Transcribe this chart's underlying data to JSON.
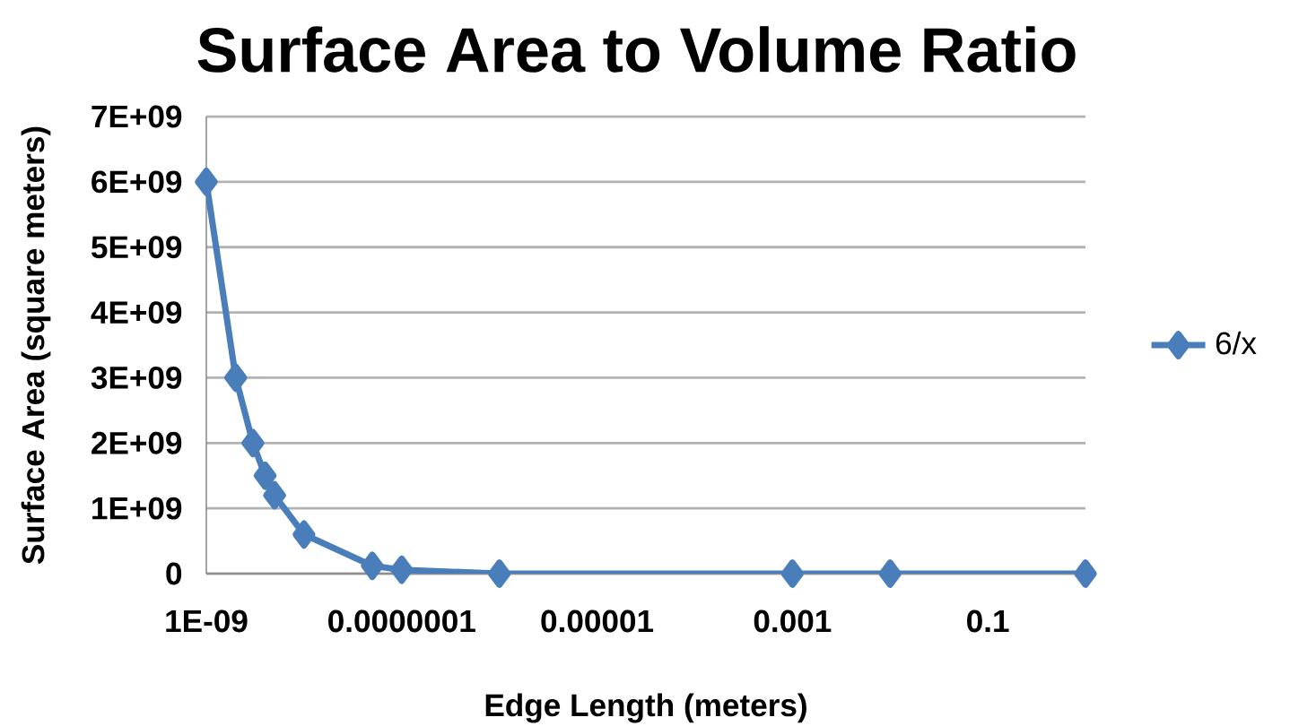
{
  "chart_data": {
    "type": "line",
    "title": "Surface Area to Volume Ratio",
    "xlabel": "Edge Length (meters)",
    "ylabel": "Surface Area (square meters)",
    "x": [
      1e-09,
      2e-09,
      3e-09,
      4e-09,
      5e-09,
      1e-08,
      5e-08,
      1e-07,
      1e-06,
      0.001,
      0.01,
      1
    ],
    "series": [
      {
        "name": "6/x",
        "color": "#4a7ebb",
        "values": [
          6000000000,
          3000000000,
          2000000000,
          1500000000,
          1200000000,
          600000000,
          120000000,
          60000000,
          0,
          0,
          0,
          0
        ]
      }
    ],
    "log": "x",
    "xlim": [
      1e-09,
      1
    ],
    "ylim": [
      0,
      7000000000
    ],
    "xticks": [
      {
        "value": 1e-09,
        "label": "1E-09"
      },
      {
        "value": 1e-07,
        "label": "0.0000001"
      },
      {
        "value": 1e-05,
        "label": "0.00001"
      },
      {
        "value": 0.001,
        "label": "0.001"
      },
      {
        "value": 0.1,
        "label": "0.1"
      }
    ],
    "yticks": [
      0,
      {
        "value": 1000000000,
        "label": "1E+09"
      },
      {
        "value": 2000000000,
        "label": "2E+09"
      },
      {
        "value": 3000000000,
        "label": "3E+09"
      },
      {
        "value": 4000000000,
        "label": "4E+09"
      },
      {
        "value": 5000000000,
        "label": "5E+09"
      },
      {
        "value": 6000000000,
        "label": "6E+09"
      },
      {
        "value": 7000000000,
        "label": "7E+09"
      }
    ],
    "grid": "y",
    "legend": "right",
    "marker": "diamond",
    "line_style": "solid"
  }
}
